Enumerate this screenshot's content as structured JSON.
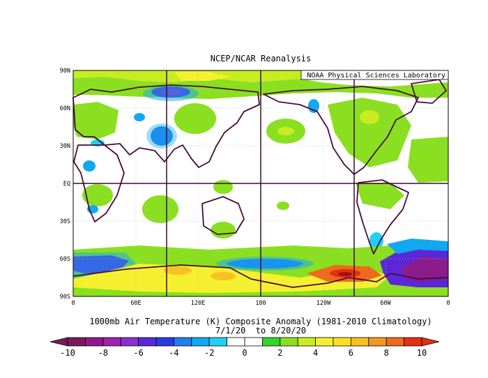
{
  "title": "NCEP/NCAR Reanalysis",
  "credit": "NOAA Physical Sciences Laboratory",
  "caption_line1": "1000mb Air Temperature (K) Composite Anomaly (1981-2010 Climatology)",
  "caption_line2": "7/1/20  to 8/20/20",
  "lat_labels": [
    "90N",
    "60N",
    "30N",
    "EQ",
    "30S",
    "60S",
    "90S"
  ],
  "lon_labels": [
    "0",
    "60E",
    "120E",
    "180",
    "120W",
    "60W",
    "0"
  ],
  "colorbar": {
    "tick_labels": [
      "-10",
      "-8",
      "-6",
      "-4",
      "-2",
      "0",
      "2",
      "4",
      "6",
      "8",
      "10"
    ],
    "colors": [
      "#7a1a5a",
      "#8c1c8c",
      "#a020b0",
      "#8a2fd0",
      "#5a28d8",
      "#2a3be0",
      "#1e7ff0",
      "#12a8f0",
      "#20d0f0",
      "#ffffff",
      "#ffffff",
      "#37d22a",
      "#8ae020",
      "#c8ec20",
      "#f4f030",
      "#ffe020",
      "#f8c020",
      "#f49820",
      "#ef6a1c",
      "#e23010"
    ]
  },
  "map_colors": {
    "land_outline": "#4a0a3a",
    "frame_line": "#3a0a2a",
    "grid": "#b4b4b4"
  }
}
